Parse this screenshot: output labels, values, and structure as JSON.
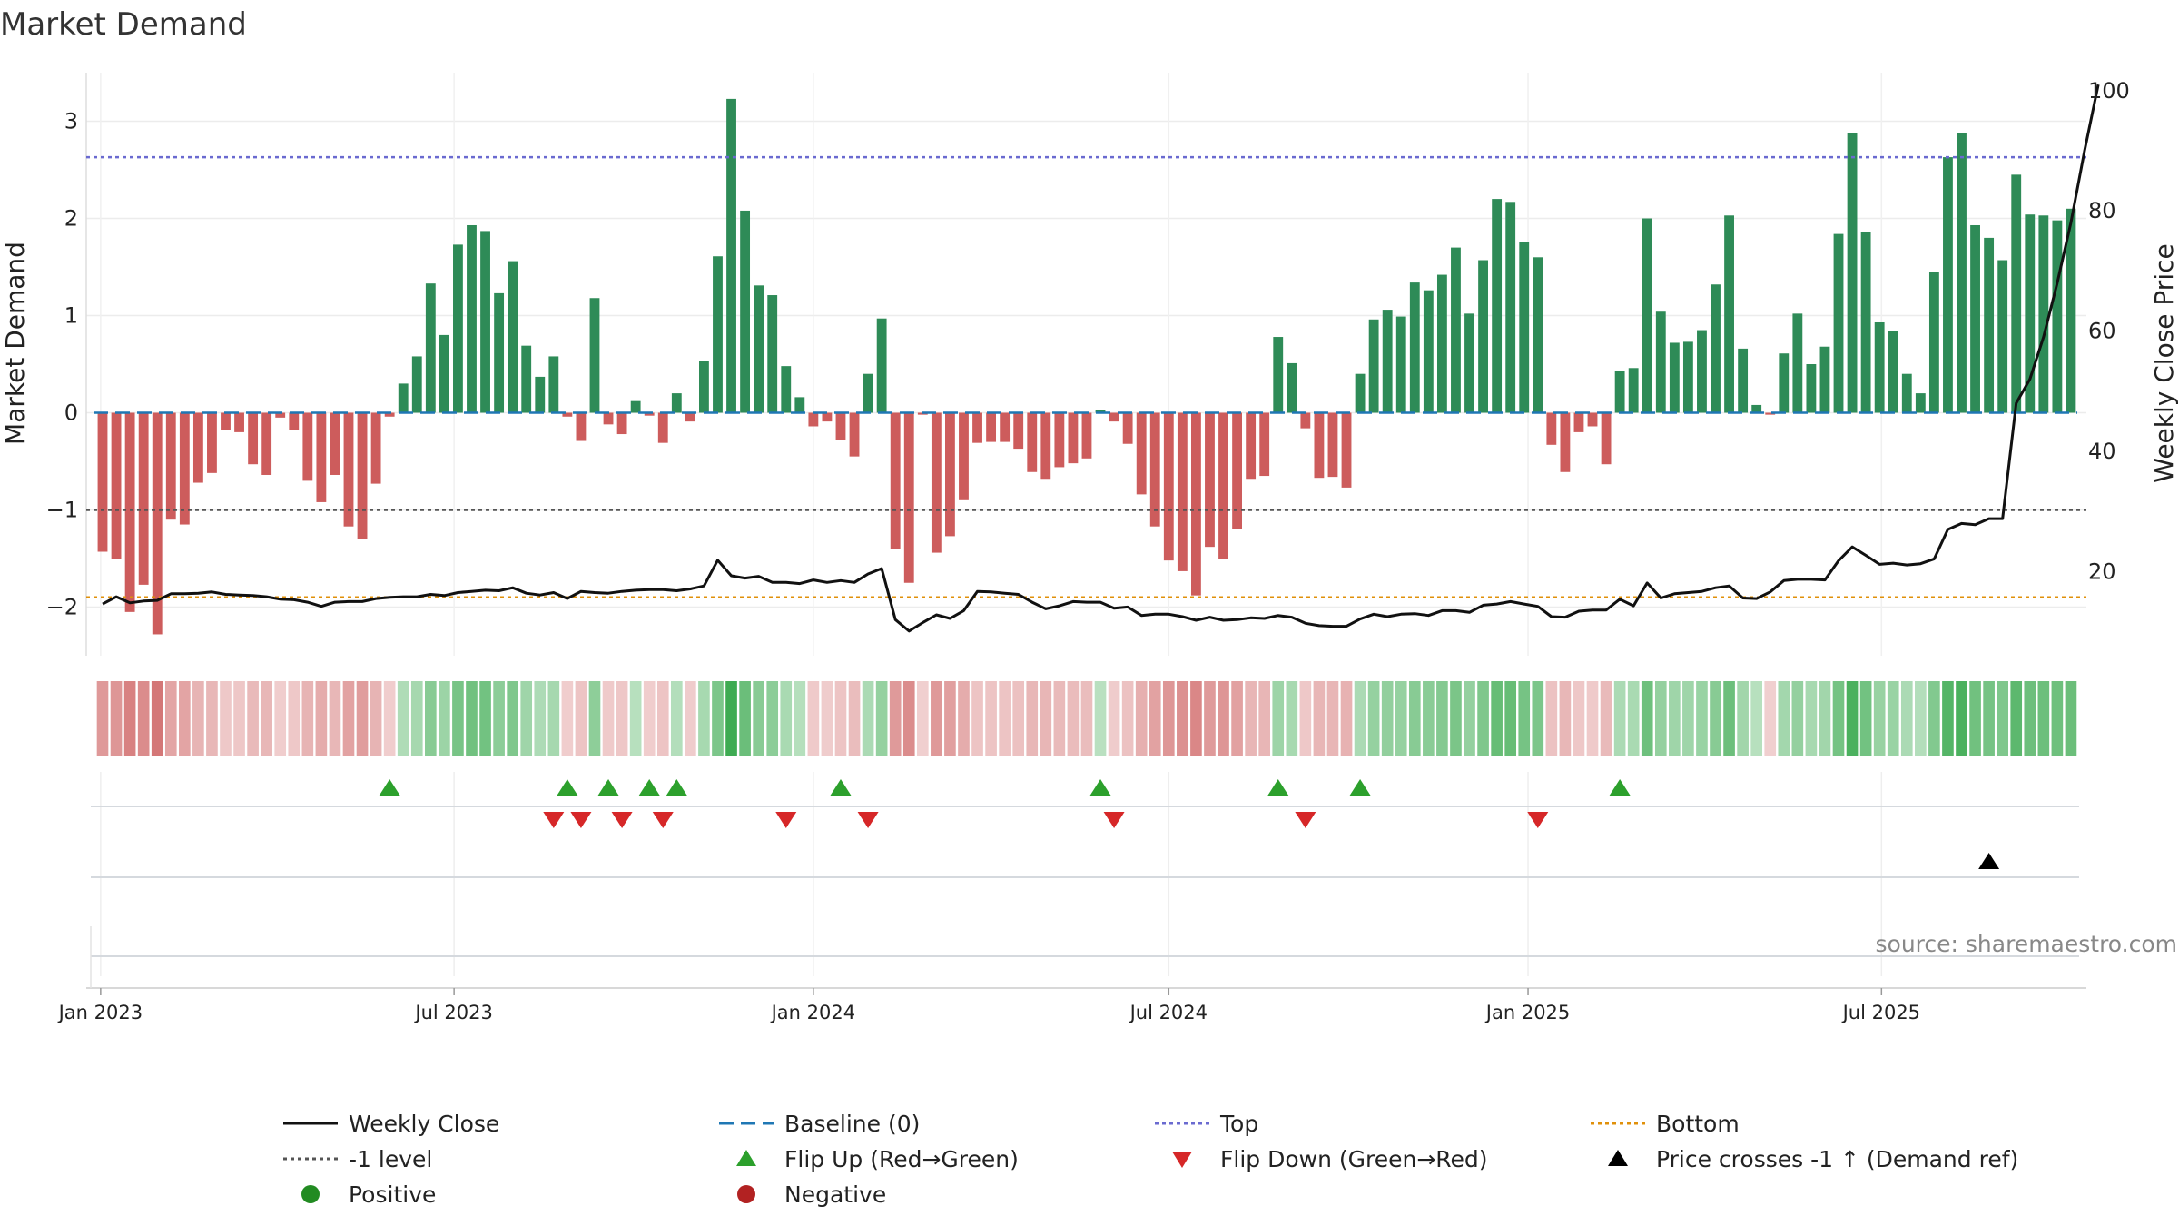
{
  "chart_data": {
    "type": "bar",
    "title": "Market Demand",
    "ylabel": "Market Demand",
    "y2label": "Weekly Close Price",
    "ylim": [
      -2.5,
      3.5
    ],
    "y2lim": [
      6,
      103
    ],
    "yticks": [
      -2,
      -1,
      0,
      1,
      2,
      3
    ],
    "ytick_labels": [
      "−2",
      "−1",
      "0",
      "1",
      "2",
      "3"
    ],
    "y2ticks": [
      20,
      40,
      60,
      80,
      100
    ],
    "y2tick_labels": [
      "20",
      "40",
      "60",
      "80",
      "100"
    ],
    "x_start": "2023-01-02",
    "x_end": "2025-10-13",
    "xticks": [
      {
        "date": "2023-01-01",
        "label": "Jan 2023"
      },
      {
        "date": "2023-07-01",
        "label": "Jul 2023"
      },
      {
        "date": "2024-01-01",
        "label": "Jan 2024"
      },
      {
        "date": "2024-07-01",
        "label": "Jul 2024"
      },
      {
        "date": "2025-01-01",
        "label": "Jan 2025"
      },
      {
        "date": "2025-07-01",
        "label": "Jul 2025"
      }
    ],
    "top_level": 2.63,
    "bottom_level": -1.9,
    "minus_one_level": -1,
    "demand_values": [
      -1.43,
      -1.5,
      -2.05,
      -1.77,
      -2.28,
      -1.1,
      -1.15,
      -0.72,
      -0.62,
      -0.18,
      -0.2,
      -0.53,
      -0.64,
      -0.05,
      -0.18,
      -0.7,
      -0.92,
      -0.64,
      -1.17,
      -1.3,
      -0.73,
      -0.04,
      0.3,
      0.58,
      1.33,
      0.8,
      1.73,
      1.93,
      1.87,
      1.23,
      1.56,
      0.69,
      0.37,
      0.58,
      -0.04,
      -0.29,
      1.18,
      -0.12,
      -0.22,
      0.12,
      -0.03,
      -0.31,
      0.2,
      -0.09,
      0.53,
      1.61,
      3.23,
      2.08,
      1.31,
      1.21,
      0.48,
      0.16,
      -0.14,
      -0.09,
      -0.28,
      -0.45,
      0.4,
      0.97,
      -1.4,
      -1.75,
      -0.02,
      -1.44,
      -1.27,
      -0.9,
      -0.31,
      -0.3,
      -0.3,
      -0.37,
      -0.61,
      -0.68,
      -0.56,
      -0.52,
      -0.47,
      0.03,
      -0.09,
      -0.32,
      -0.84,
      -1.17,
      -1.52,
      -1.63,
      -1.88,
      -1.38,
      -1.5,
      -1.2,
      -0.68,
      -0.65,
      0.78,
      0.51,
      -0.16,
      -0.67,
      -0.66,
      -0.77,
      0.4,
      0.96,
      1.06,
      0.99,
      1.34,
      1.26,
      1.42,
      1.7,
      1.02,
      1.57,
      2.2,
      2.17,
      1.76,
      1.6,
      -0.33,
      -0.61,
      -0.2,
      -0.14,
      -0.53,
      0.43,
      0.46,
      2.0,
      1.04,
      0.72,
      0.73,
      0.85,
      1.32,
      2.03,
      0.66,
      0.08,
      -0.02,
      0.61,
      1.02,
      0.5,
      0.68,
      1.84,
      2.88,
      1.86,
      0.93,
      0.84,
      0.4,
      0.2,
      1.45,
      2.63,
      2.88,
      1.93,
      1.8,
      1.57,
      2.45,
      2.04,
      2.03,
      1.98,
      2.1
    ],
    "close_values": [
      14.6,
      15.8,
      14.8,
      15.1,
      15.2,
      16.3,
      16.3,
      16.4,
      16.6,
      16.2,
      16.1,
      16.0,
      15.8,
      15.4,
      15.3,
      14.9,
      14.2,
      14.9,
      15.0,
      15.0,
      15.5,
      15.7,
      15.8,
      15.8,
      16.2,
      16.0,
      16.5,
      16.7,
      16.9,
      16.8,
      17.3,
      16.4,
      16.1,
      16.5,
      15.5,
      16.7,
      16.5,
      16.4,
      16.7,
      16.9,
      17.0,
      17.0,
      16.8,
      17.1,
      17.6,
      21.9,
      19.3,
      18.9,
      19.2,
      18.2,
      18.2,
      18.0,
      18.6,
      18.2,
      18.5,
      18.2,
      19.6,
      20.5,
      12.0,
      10.1,
      11.5,
      12.8,
      12.2,
      13.5,
      16.7,
      16.6,
      16.4,
      16.2,
      14.9,
      13.8,
      14.3,
      15.0,
      14.9,
      14.9,
      13.9,
      14.1,
      12.7,
      12.9,
      12.9,
      12.5,
      11.9,
      12.4,
      11.9,
      12.0,
      12.3,
      12.2,
      12.7,
      12.4,
      11.4,
      11.0,
      10.9,
      10.9,
      12.1,
      12.9,
      12.5,
      12.9,
      13.0,
      12.7,
      13.5,
      13.5,
      13.2,
      14.4,
      14.6,
      15.0,
      14.6,
      14.2,
      12.5,
      12.4,
      13.4,
      13.6,
      13.6,
      15.4,
      14.3,
      18.1,
      15.6,
      16.3,
      16.5,
      16.7,
      17.3,
      17.6,
      15.6,
      15.5,
      16.6,
      18.5,
      18.7,
      18.7,
      18.6,
      21.8,
      24.1,
      22.7,
      21.2,
      21.4,
      21.1,
      21.3,
      22.1,
      27.0,
      28.0,
      27.8,
      28.8,
      28.8,
      48.0,
      52.0,
      59.0,
      68.0,
      78.0,
      90.0,
      101.0
    ],
    "flip_up_dates": [
      "2023-05-29",
      "2023-08-28",
      "2023-09-18",
      "2023-10-09",
      "2023-10-23",
      "2024-01-15",
      "2024-05-27",
      "2024-08-26",
      "2024-10-07",
      "2025-02-17"
    ],
    "flip_down_dates": [
      "2023-08-21",
      "2023-09-04",
      "2023-09-25",
      "2023-10-16",
      "2023-12-18",
      "2024-01-29",
      "2024-06-03",
      "2024-09-09",
      "2025-01-06"
    ],
    "price_cross_dates": [
      "2025-08-25"
    ],
    "legend": [
      {
        "label": "Weekly Close",
        "kind": "line",
        "color": "#111111",
        "dash": ""
      },
      {
        "label": "Baseline (0)",
        "kind": "line",
        "color": "#1f77b4",
        "dash": "16,8"
      },
      {
        "label": "Top",
        "kind": "line",
        "color": "#6a6ad0",
        "dash": "4,4"
      },
      {
        "label": "Bottom",
        "kind": "line",
        "color": "#e0900a",
        "dash": "4,4"
      },
      {
        "label": "-1 level",
        "kind": "line",
        "color": "#555555",
        "dash": "4,4"
      },
      {
        "label": "Flip Up (Red→Green)",
        "kind": "tri-up",
        "color": "#2ca02c"
      },
      {
        "label": "Flip Down (Green→Red)",
        "kind": "tri-down",
        "color": "#d62728"
      },
      {
        "label": "Price crosses -1 ↑ (Demand ref)",
        "kind": "tri-up",
        "color": "#000000"
      },
      {
        "label": "Positive",
        "kind": "dot",
        "color": "#228b22"
      },
      {
        "label": "Negative",
        "kind": "dot",
        "color": "#b22222"
      }
    ],
    "grid": true,
    "legend_position": "bottom"
  },
  "colors": {
    "positive_bar": "#2e8b57",
    "negative_bar": "#cd5c5c",
    "close_line": "#111111",
    "baseline": "#1f77b4",
    "top": "#6a6ad0",
    "bottom": "#e0900a",
    "minus_one": "#555555",
    "flip_up": "#2ca02c",
    "flip_down": "#d62728",
    "price_cross": "#000000"
  },
  "source_text": "source: sharemaestro.com"
}
